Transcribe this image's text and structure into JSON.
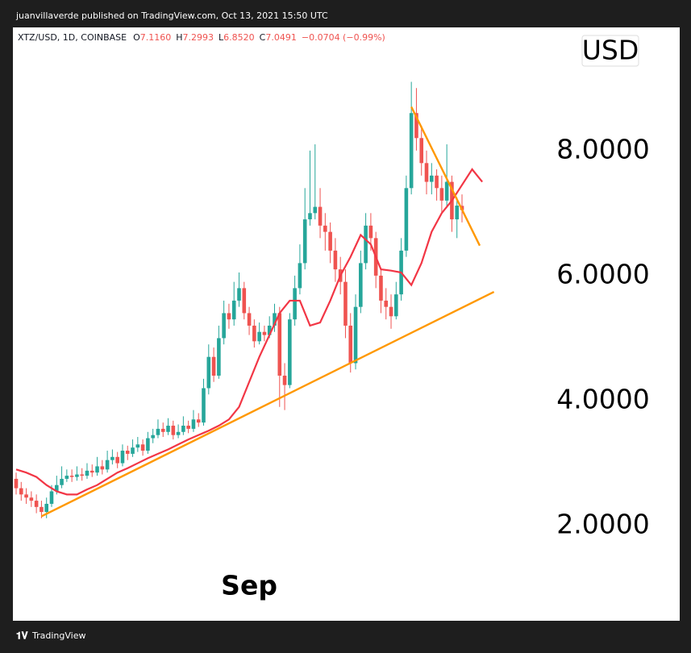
{
  "header": {
    "title": "juanvillaverde published on TradingView.com, Oct 13, 2021 15:50 UTC"
  },
  "footer": {
    "brand": "TradingView"
  },
  "chart_data": {
    "type": "candlestick",
    "symbol": "XTZ/USD, 1D, COINBASE",
    "quote": [
      {
        "label": "O",
        "value": "7.1160"
      },
      {
        "label": "H",
        "value": "7.2993"
      },
      {
        "label": "L",
        "value": "6.8520"
      },
      {
        "label": "C",
        "value": "7.0491"
      }
    ],
    "change": "−0.0704 (−0.99%)",
    "currency": "USD",
    "up_color": "#26a69a",
    "down_color": "#ef5350",
    "categories": [
      null,
      null,
      null,
      null,
      null,
      null,
      null,
      null,
      null,
      null,
      null,
      null,
      null,
      null,
      null,
      null,
      null,
      null,
      null,
      null,
      null,
      null,
      null,
      null,
      null,
      null,
      null,
      null,
      null,
      null,
      null,
      null,
      null,
      null,
      null,
      null,
      null,
      null,
      null,
      null,
      null,
      null,
      null,
      null,
      null,
      null,
      "Sep",
      null,
      null,
      null,
      null,
      null,
      null,
      null,
      null,
      null,
      null,
      null,
      null,
      null,
      null,
      null,
      null,
      null,
      null,
      null,
      null,
      null,
      null,
      null,
      null,
      null,
      null,
      null,
      null,
      null,
      null,
      null,
      null,
      null,
      null,
      null,
      null,
      null,
      null,
      null,
      null,
      null,
      null
    ],
    "open": [
      2.75,
      2.6,
      2.5,
      2.45,
      2.4,
      2.3,
      2.22,
      2.35,
      2.55,
      2.65,
      2.75,
      2.8,
      2.78,
      2.82,
      2.8,
      2.88,
      2.85,
      2.95,
      2.9,
      3.05,
      3.1,
      3.0,
      3.2,
      3.15,
      3.25,
      3.3,
      3.2,
      3.4,
      3.45,
      3.55,
      3.5,
      3.6,
      3.45,
      3.5,
      3.6,
      3.55,
      3.7,
      3.65,
      4.2,
      4.7,
      4.4,
      5.0,
      5.4,
      5.3,
      5.6,
      5.8,
      5.4,
      5.2,
      4.95,
      5.1,
      5.05,
      5.2,
      5.4,
      4.4,
      4.25,
      5.3,
      5.8,
      6.2,
      6.9,
      7.0,
      7.1,
      6.8,
      6.7,
      6.4,
      6.1,
      5.9,
      5.2,
      4.6,
      5.5,
      6.2,
      6.8,
      6.6,
      6.0,
      5.6,
      5.5,
      5.35,
      5.7,
      6.4,
      7.4,
      8.6,
      8.2,
      7.8,
      7.5,
      7.6,
      7.4,
      7.2,
      7.5,
      6.9,
      7.116
    ],
    "high": [
      2.85,
      2.7,
      2.6,
      2.55,
      2.5,
      2.4,
      2.45,
      2.65,
      2.8,
      2.95,
      2.9,
      2.9,
      2.95,
      2.92,
      3.0,
      2.98,
      3.1,
      3.05,
      3.2,
      3.22,
      3.18,
      3.3,
      3.28,
      3.38,
      3.42,
      3.38,
      3.5,
      3.55,
      3.7,
      3.65,
      3.72,
      3.68,
      3.62,
      3.75,
      3.68,
      3.85,
      3.8,
      4.35,
      4.9,
      4.85,
      5.2,
      5.6,
      5.55,
      5.9,
      6.05,
      5.9,
      5.5,
      5.3,
      5.25,
      5.2,
      5.35,
      5.55,
      5.5,
      4.6,
      5.4,
      6.0,
      6.5,
      7.4,
      8.0,
      8.1,
      7.4,
      7.0,
      6.85,
      6.6,
      6.3,
      6.1,
      5.4,
      5.7,
      6.4,
      7.0,
      7.0,
      6.7,
      6.1,
      5.8,
      5.7,
      5.9,
      6.6,
      7.6,
      9.1,
      9.0,
      8.4,
      8.0,
      7.8,
      7.7,
      7.6,
      8.1,
      7.6,
      7.25,
      7.2993
    ],
    "low": [
      2.5,
      2.4,
      2.35,
      2.3,
      2.2,
      2.12,
      2.12,
      2.3,
      2.5,
      2.6,
      2.7,
      2.7,
      2.72,
      2.72,
      2.75,
      2.78,
      2.8,
      2.82,
      2.85,
      2.98,
      2.92,
      2.95,
      3.05,
      3.1,
      3.18,
      3.12,
      3.15,
      3.32,
      3.4,
      3.42,
      3.45,
      3.38,
      3.4,
      3.45,
      3.48,
      3.5,
      3.58,
      3.6,
      4.1,
      4.3,
      4.35,
      4.9,
      5.15,
      5.2,
      5.5,
      5.3,
      5.05,
      4.85,
      4.9,
      4.95,
      5.0,
      5.1,
      3.9,
      3.85,
      4.2,
      5.2,
      5.7,
      6.1,
      6.8,
      6.9,
      6.6,
      6.4,
      6.2,
      5.9,
      5.7,
      5.0,
      4.45,
      4.5,
      5.4,
      6.1,
      6.4,
      5.8,
      5.4,
      5.3,
      5.15,
      5.3,
      5.6,
      6.3,
      7.3,
      8.0,
      7.6,
      7.3,
      7.3,
      7.2,
      7.0,
      7.1,
      6.7,
      6.6,
      6.852
    ],
    "close": [
      2.6,
      2.5,
      2.45,
      2.4,
      2.3,
      2.22,
      2.35,
      2.55,
      2.65,
      2.75,
      2.8,
      2.78,
      2.82,
      2.8,
      2.88,
      2.85,
      2.95,
      2.9,
      3.05,
      3.1,
      3.0,
      3.2,
      3.15,
      3.25,
      3.3,
      3.2,
      3.4,
      3.45,
      3.55,
      3.5,
      3.6,
      3.45,
      3.5,
      3.6,
      3.55,
      3.7,
      3.65,
      4.2,
      4.7,
      4.4,
      5.0,
      5.4,
      5.3,
      5.6,
      5.8,
      5.4,
      5.2,
      4.95,
      5.1,
      5.05,
      5.2,
      5.4,
      4.4,
      4.25,
      5.3,
      5.8,
      6.2,
      6.9,
      7.0,
      7.1,
      6.8,
      6.7,
      6.4,
      6.1,
      5.9,
      5.2,
      4.6,
      5.5,
      6.2,
      6.8,
      6.6,
      6.0,
      5.6,
      5.5,
      5.35,
      5.7,
      6.4,
      7.4,
      8.6,
      8.2,
      7.8,
      7.5,
      7.6,
      7.4,
      7.2,
      7.5,
      6.9,
      7.12,
      7.0491
    ],
    "moving_average": {
      "color": "#f23645",
      "x": [
        0,
        2,
        4,
        6,
        8,
        10,
        12,
        14,
        16,
        18,
        20,
        22,
        24,
        26,
        28,
        30,
        32,
        34,
        36,
        38,
        40,
        42,
        44,
        46,
        48,
        50,
        52,
        54,
        56,
        58,
        60,
        62,
        64,
        66,
        68,
        70,
        72,
        74,
        76,
        78,
        80,
        82,
        84,
        86,
        88,
        90,
        92
      ],
      "values": [
        2.9,
        2.85,
        2.78,
        2.65,
        2.55,
        2.5,
        2.5,
        2.58,
        2.65,
        2.75,
        2.85,
        2.92,
        3.0,
        3.08,
        3.15,
        3.22,
        3.3,
        3.38,
        3.45,
        3.52,
        3.6,
        3.7,
        3.9,
        4.3,
        4.7,
        5.05,
        5.4,
        5.6,
        5.6,
        5.2,
        5.25,
        5.6,
        6.0,
        6.3,
        6.65,
        6.5,
        6.1,
        6.08,
        6.05,
        5.85,
        6.2,
        6.7,
        7.0,
        7.2,
        7.45,
        7.7,
        7.5
      ]
    },
    "trendlines": [
      {
        "color": "#ff9800",
        "x": [
          5,
          94.3
        ],
        "y": [
          2.15,
          5.74
        ]
      },
      {
        "color": "#ff9800",
        "x": [
          78,
          91.5
        ],
        "y": [
          8.7,
          6.48
        ]
      }
    ],
    "ylim": [
      0.48,
      9.97
    ],
    "yticks": [
      {
        "value": 2,
        "label": "2.0000"
      },
      {
        "value": 4,
        "label": "4.0000"
      },
      {
        "value": 6,
        "label": "6.0000"
      },
      {
        "value": 8,
        "label": "8.0000"
      }
    ]
  }
}
